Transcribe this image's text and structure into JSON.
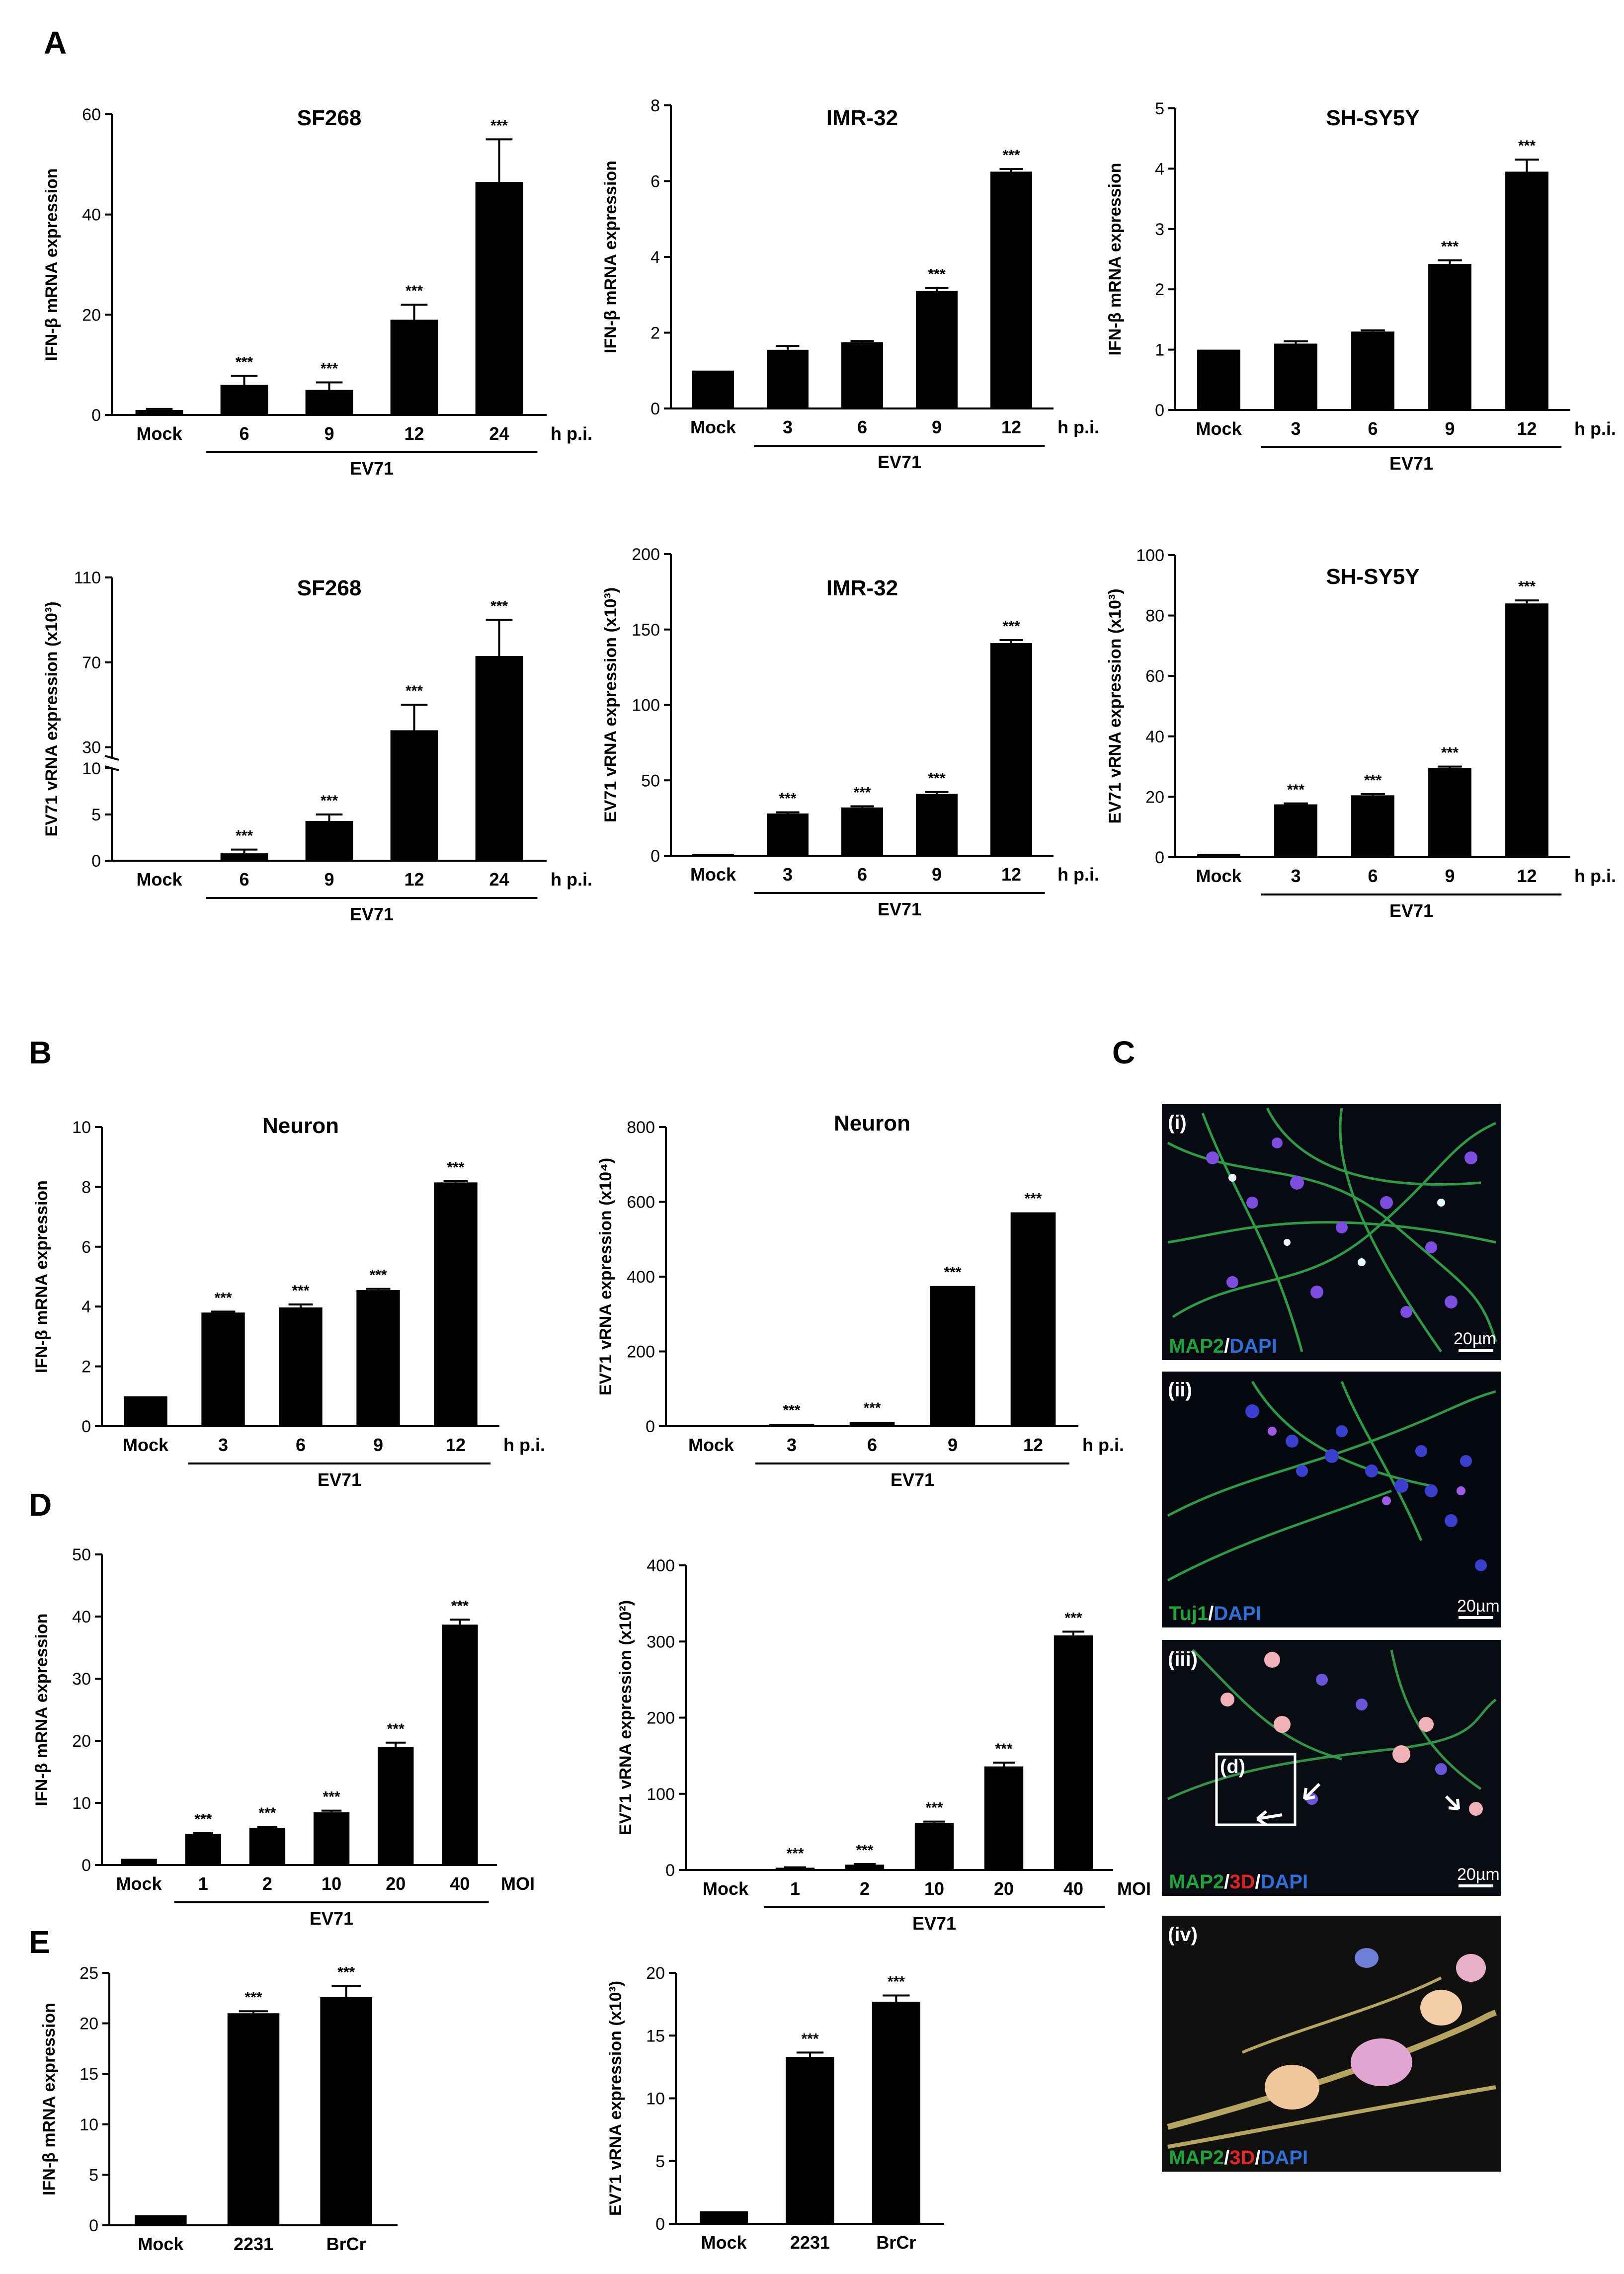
{
  "panel_letters": [
    "A",
    "B",
    "C",
    "D",
    "E"
  ],
  "group_label": "EV71",
  "time_unit": "h p.i.",
  "moi_unit": "MOI",
  "significance": "***",
  "micrographs": [
    {
      "tag": "(i)",
      "stain": [
        "MAP2",
        "/",
        "DAPI"
      ],
      "scale": "20µm"
    },
    {
      "tag": "(ii)",
      "stain": [
        "Tuj1",
        "/",
        "DAPI"
      ],
      "scale": "20µm"
    },
    {
      "tag": "(iii)",
      "stain": [
        "MAP2",
        "/",
        "3D",
        "/",
        "DAPI"
      ],
      "scale": "20µm",
      "inset": "(d)"
    },
    {
      "tag": "(iv)",
      "stain": [
        "MAP2",
        "/",
        "3D",
        "/",
        "DAPI"
      ],
      "scale": ""
    }
  ],
  "chart_data": [
    {
      "id": "A1",
      "type": "bar",
      "title": "SF268",
      "ylabel": "IFN-β mRNA expression",
      "categories": [
        "Mock",
        "6",
        "9",
        "12",
        "24"
      ],
      "values": [
        1,
        6,
        5,
        19,
        46.5
      ],
      "errors": [
        0.2,
        1.8,
        1.5,
        3,
        8.5
      ],
      "sig": [
        false,
        true,
        true,
        true,
        true
      ],
      "ylim": [
        0,
        60
      ],
      "yticks": [
        0,
        20,
        40,
        60
      ],
      "unit": "h p.i.",
      "group": "EV71"
    },
    {
      "id": "A2",
      "type": "bar",
      "title": "IMR-32",
      "ylabel": "IFN-β mRNA expression",
      "categories": [
        "Mock",
        "3",
        "6",
        "9",
        "12"
      ],
      "values": [
        1,
        1.55,
        1.75,
        3.1,
        6.25
      ],
      "errors": [
        0,
        0.1,
        0.03,
        0.08,
        0.07
      ],
      "sig": [
        false,
        false,
        false,
        true,
        true
      ],
      "ylim": [
        0,
        8
      ],
      "yticks": [
        0,
        2,
        4,
        6,
        8
      ],
      "unit": "h p.i.",
      "group": "EV71"
    },
    {
      "id": "A3",
      "type": "bar",
      "title": "SH-SY5Y",
      "ylabel": "IFN-β mRNA expression",
      "categories": [
        "Mock",
        "3",
        "6",
        "9",
        "12"
      ],
      "values": [
        1,
        1.1,
        1.3,
        2.42,
        3.95
      ],
      "errors": [
        0,
        0.04,
        0.02,
        0.06,
        0.2
      ],
      "sig": [
        false,
        false,
        false,
        true,
        true
      ],
      "ylim": [
        0,
        5
      ],
      "yticks": [
        0,
        1,
        2,
        3,
        4,
        5
      ],
      "unit": "h p.i.",
      "group": "EV71"
    },
    {
      "id": "A4",
      "type": "bar",
      "title": "SF268",
      "ylabel": "EV71 vRNA expression (x10³)",
      "categories": [
        "Mock",
        "6",
        "9",
        "12",
        "24"
      ],
      "values": [
        0,
        0.8,
        4.3,
        38,
        73
      ],
      "errors": [
        0,
        0.4,
        0.7,
        12,
        17
      ],
      "sig": [
        false,
        true,
        true,
        true,
        true
      ],
      "ylim": [
        0,
        110
      ],
      "yticks": [
        0,
        5,
        10,
        30,
        70,
        110
      ],
      "broken": {
        "low": [
          0,
          10
        ],
        "high": [
          25,
          110
        ]
      },
      "unit": "h p.i.",
      "group": "EV71"
    },
    {
      "id": "A5",
      "type": "bar",
      "title": "IMR-32",
      "ylabel": "EV71 vRNA expression (x10³)",
      "categories": [
        "Mock",
        "3",
        "6",
        "9",
        "12"
      ],
      "values": [
        1,
        28,
        32,
        41,
        141
      ],
      "errors": [
        0,
        0.8,
        0.8,
        1.2,
        2
      ],
      "sig": [
        false,
        true,
        true,
        true,
        true
      ],
      "ylim": [
        0,
        200
      ],
      "yticks": [
        0,
        50,
        100,
        150,
        200
      ],
      "unit": "h p.i.",
      "group": "EV71"
    },
    {
      "id": "A6",
      "type": "bar",
      "title": "SH-SY5Y",
      "ylabel": "EV71 vRNA expression (x10³)",
      "categories": [
        "Mock",
        "3",
        "6",
        "9",
        "12"
      ],
      "values": [
        1,
        17.5,
        20.5,
        29.5,
        84
      ],
      "errors": [
        0,
        0.3,
        0.4,
        0.5,
        1
      ],
      "sig": [
        false,
        true,
        true,
        true,
        true
      ],
      "ylim": [
        0,
        100
      ],
      "yticks": [
        0,
        20,
        40,
        60,
        80,
        100
      ],
      "unit": "h p.i.",
      "group": "EV71"
    },
    {
      "id": "B1",
      "type": "bar",
      "title": "Neuron",
      "ylabel": "IFN-β mRNA  expression",
      "categories": [
        "Mock",
        "3",
        "6",
        "9",
        "12"
      ],
      "values": [
        1,
        3.8,
        3.97,
        4.55,
        8.15
      ],
      "errors": [
        0,
        0.03,
        0.1,
        0.04,
        0.04
      ],
      "sig": [
        false,
        true,
        true,
        true,
        true
      ],
      "ylim": [
        0,
        10
      ],
      "yticks": [
        0,
        2,
        4,
        6,
        8,
        10
      ],
      "unit": "h p.i.",
      "group": "EV71"
    },
    {
      "id": "B2",
      "type": "bar",
      "title": "Neuron",
      "ylabel": "EV71 vRNA expression (x10⁴)",
      "categories": [
        "Mock",
        "3",
        "6",
        "9",
        "12"
      ],
      "values": [
        1,
        6,
        12,
        375,
        572
      ],
      "errors": [
        0,
        0,
        0,
        0,
        0
      ],
      "sig": [
        false,
        true,
        true,
        true,
        true
      ],
      "ylim": [
        0,
        800
      ],
      "yticks": [
        0,
        200,
        400,
        600,
        800
      ],
      "unit": "h p.i.",
      "group": "EV71"
    },
    {
      "id": "D1",
      "type": "bar",
      "title": "",
      "ylabel": "IFN-β mRNA expression",
      "categories": [
        "Mock",
        "1",
        "2",
        "10",
        "20",
        "40"
      ],
      "values": [
        1,
        5,
        6,
        8.5,
        19,
        38.7
      ],
      "errors": [
        0,
        0.15,
        0.15,
        0.25,
        0.7,
        0.8
      ],
      "sig": [
        false,
        true,
        true,
        true,
        true,
        true
      ],
      "ylim": [
        0,
        50
      ],
      "yticks": [
        0,
        10,
        20,
        30,
        40,
        50
      ],
      "unit": "MOI",
      "group": "EV71"
    },
    {
      "id": "D2",
      "type": "bar",
      "title": "",
      "ylabel": "EV71 vRNA expression (x10²)",
      "categories": [
        "Mock",
        "1",
        "2",
        "10",
        "20",
        "40"
      ],
      "values": [
        0,
        3,
        7,
        62,
        136,
        308
      ],
      "errors": [
        0,
        0.5,
        0.8,
        1.5,
        5,
        5
      ],
      "sig": [
        false,
        true,
        true,
        true,
        true,
        true
      ],
      "ylim": [
        0,
        400
      ],
      "yticks": [
        0,
        100,
        200,
        300,
        400
      ],
      "unit": "MOI",
      "group": "EV71"
    },
    {
      "id": "E1",
      "type": "bar",
      "title": "",
      "ylabel": "IFN-β mRNA  expression",
      "categories": [
        "Mock",
        "2231",
        "BrCr"
      ],
      "values": [
        1,
        21,
        22.6
      ],
      "errors": [
        0,
        0.2,
        1.1
      ],
      "sig": [
        false,
        true,
        true
      ],
      "ylim": [
        0,
        25
      ],
      "yticks": [
        0,
        5,
        10,
        15,
        20,
        25
      ],
      "unit": "",
      "group": ""
    },
    {
      "id": "E2",
      "type": "bar",
      "title": "",
      "ylabel": "EV71 vRNA expression (x10³)",
      "categories": [
        "Mock",
        "2231",
        "BrCr"
      ],
      "values": [
        1,
        13.3,
        17.7
      ],
      "errors": [
        0,
        0.35,
        0.5
      ],
      "sig": [
        false,
        true,
        true
      ],
      "ylim": [
        0,
        20
      ],
      "yticks": [
        0,
        5,
        10,
        15,
        20
      ],
      "unit": "",
      "group": ""
    }
  ]
}
